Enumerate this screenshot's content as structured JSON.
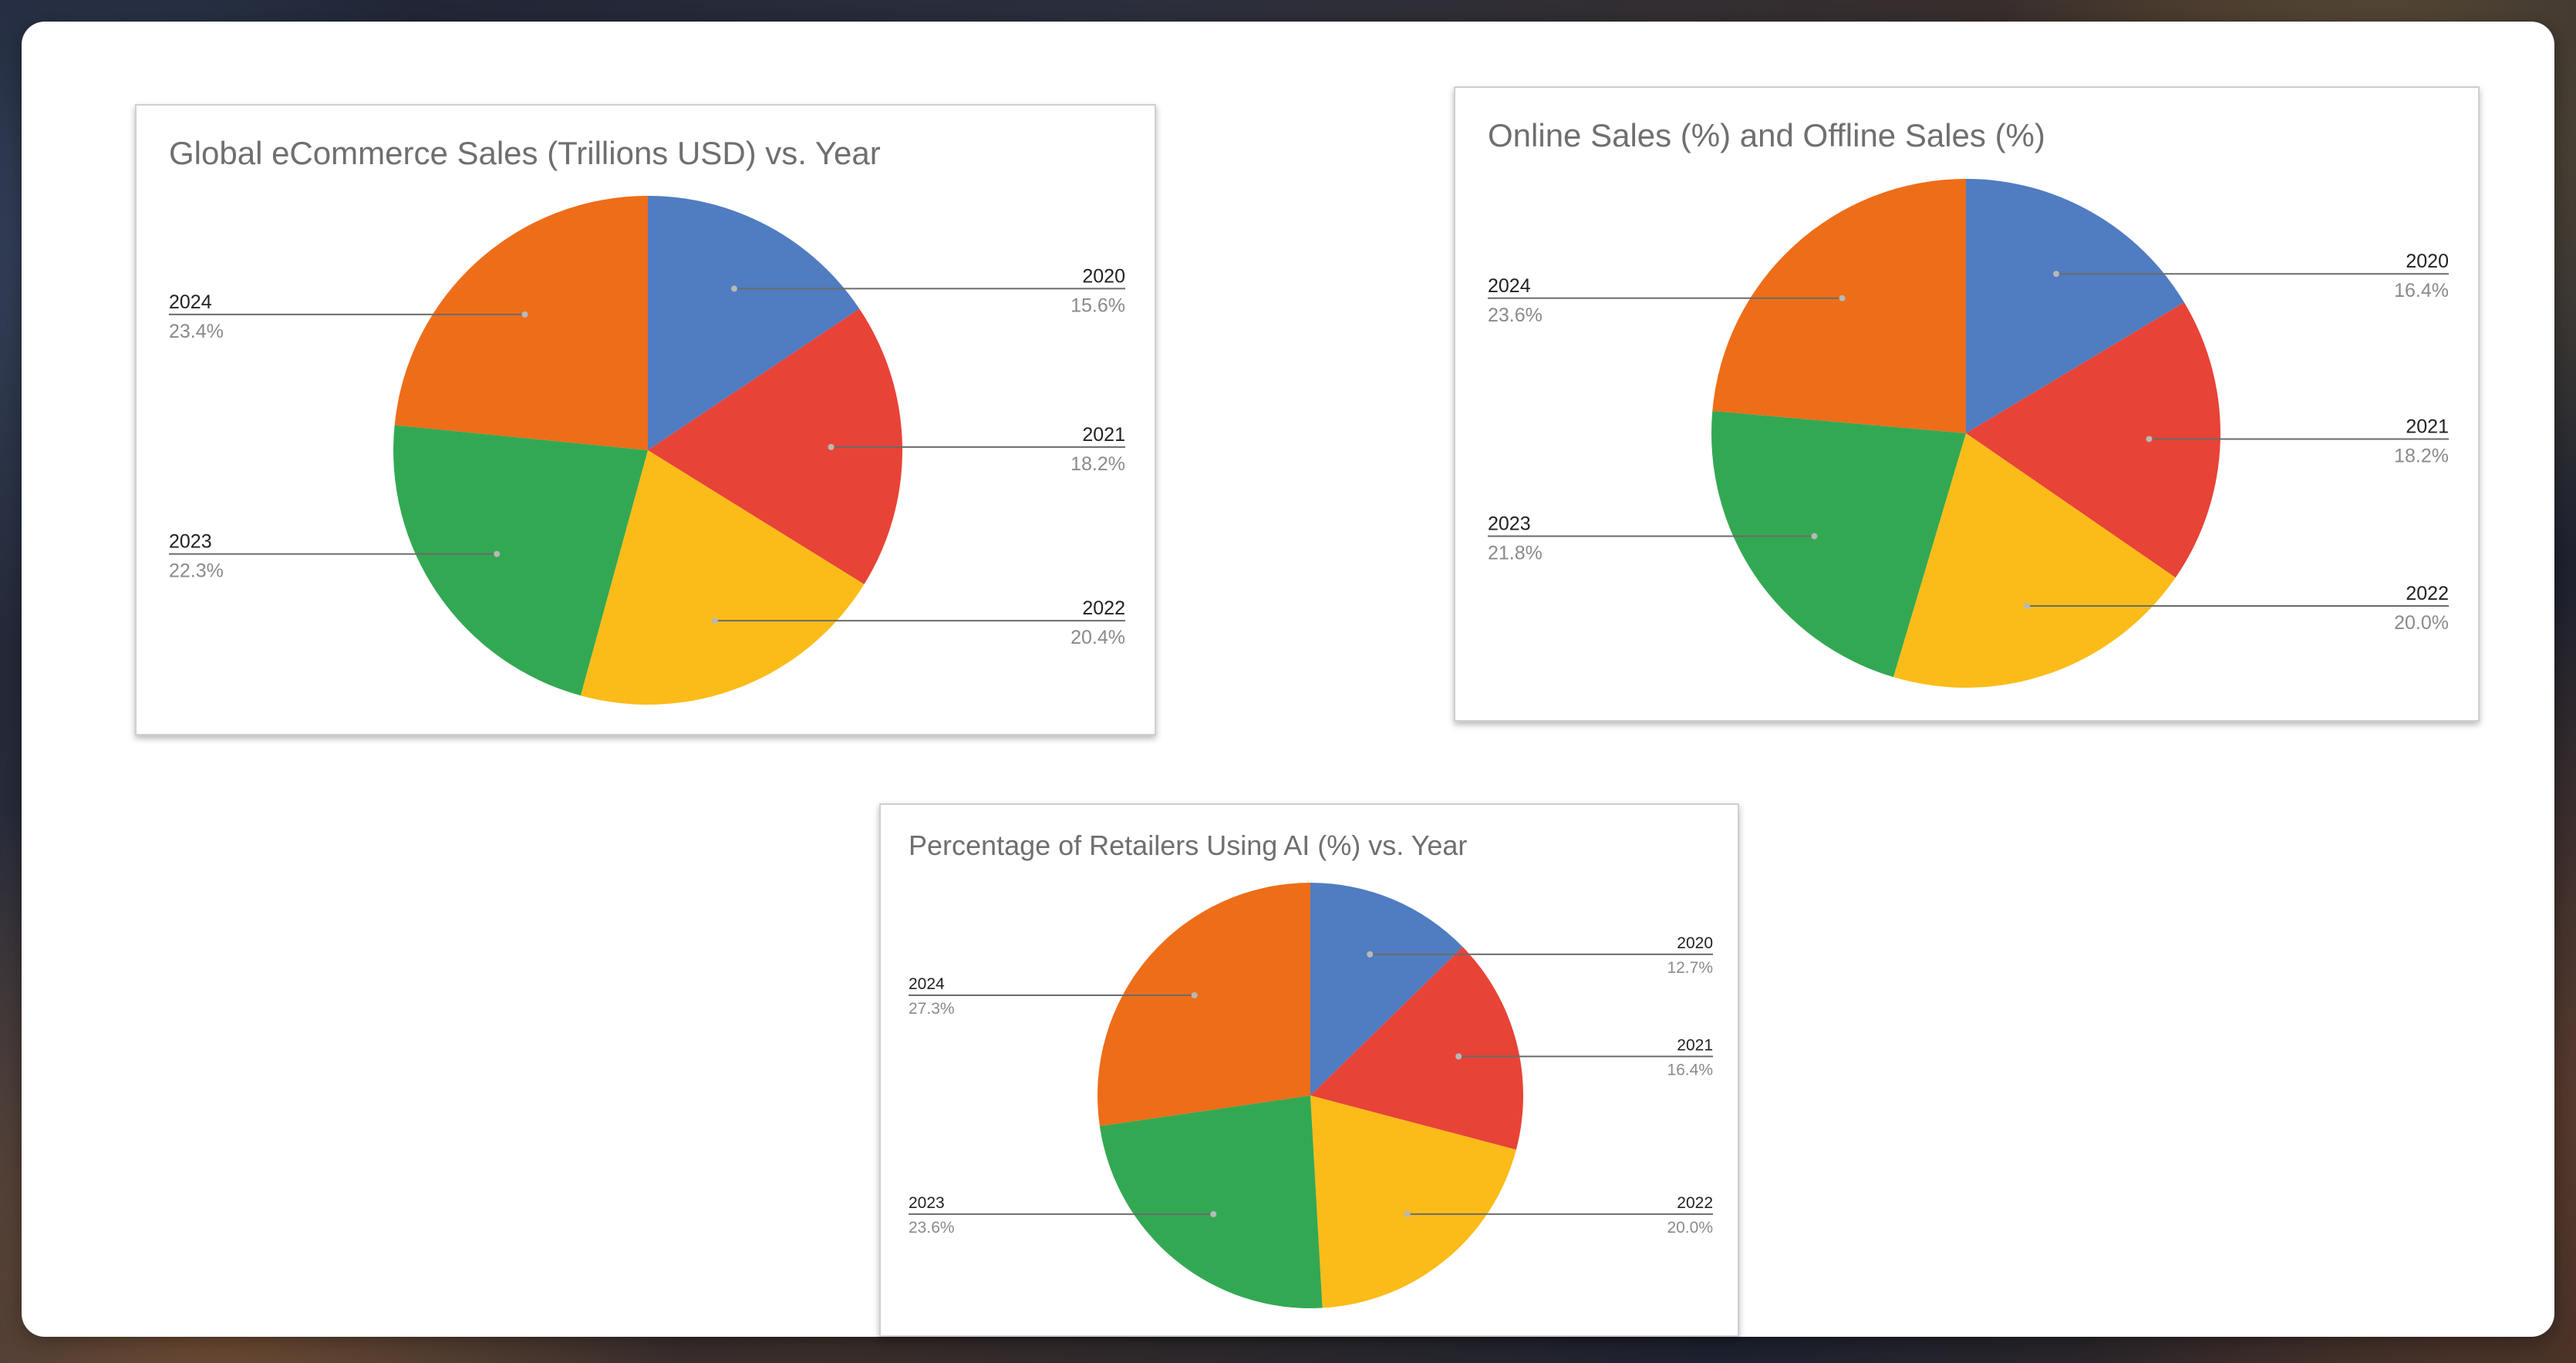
{
  "colors": {
    "2020": "#507cc1",
    "2021": "#e84337",
    "2022": "#fbbc19",
    "2023": "#33a853",
    "2024": "#ee6d19"
  },
  "chart_data": [
    {
      "type": "pie",
      "title": "Global eCommerce Sales (Trillions USD) vs. Year",
      "categories": [
        "2020",
        "2021",
        "2022",
        "2023",
        "2024"
      ],
      "percent_labels": [
        "15.6%",
        "18.2%",
        "20.4%",
        "22.3%",
        "23.4%"
      ],
      "values": [
        15.6,
        18.2,
        20.4,
        22.3,
        23.4
      ],
      "legend": "none"
    },
    {
      "type": "pie",
      "title": "Online Sales (%) and Offline Sales (%)",
      "categories": [
        "2020",
        "2021",
        "2022",
        "2023",
        "2024"
      ],
      "percent_labels": [
        "16.4%",
        "18.2%",
        "20.0%",
        "21.8%",
        "23.6%"
      ],
      "values": [
        16.4,
        18.2,
        20.0,
        21.8,
        23.6
      ],
      "legend": "none"
    },
    {
      "type": "pie",
      "title": "Percentage of Retailers Using AI (%) vs. Year",
      "categories": [
        "2020",
        "2021",
        "2022",
        "2023",
        "2024"
      ],
      "percent_labels": [
        "12.7%",
        "16.4%",
        "20.0%",
        "23.6%",
        "27.3%"
      ],
      "values": [
        12.7,
        16.4,
        20.0,
        23.6,
        27.3
      ],
      "legend": "none"
    }
  ]
}
